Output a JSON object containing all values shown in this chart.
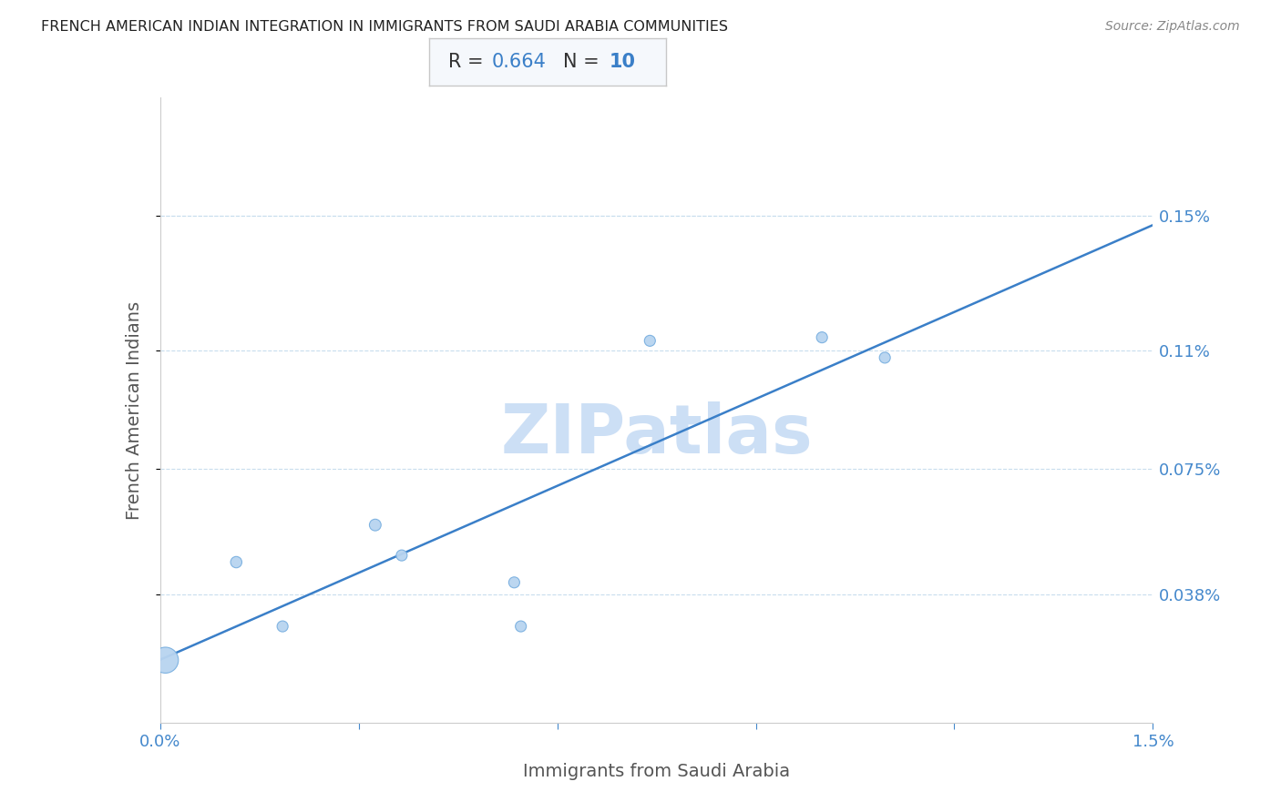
{
  "title": "FRENCH AMERICAN INDIAN INTEGRATION IN IMMIGRANTS FROM SAUDI ARABIA COMMUNITIES",
  "source": "Source: ZipAtlas.com",
  "xlabel": "Immigrants from Saudi Arabia",
  "ylabel": "French American Indians",
  "R": "0.664",
  "N": "10",
  "watermark": "ZIPatlas",
  "xlim": [
    0.0,
    0.015
  ],
  "ylim": [
    0.0,
    0.00185
  ],
  "ytick_labels": [
    "0.038%",
    "0.075%",
    "0.11%",
    "0.15%"
  ],
  "ytick_values": [
    0.00038,
    0.00075,
    0.0011,
    0.0015
  ],
  "xtick_positions": [
    0.0,
    0.003,
    0.006,
    0.009,
    0.012,
    0.015
  ],
  "scatter_x": [
    8e-05,
    0.00115,
    0.00185,
    0.00325,
    0.00365,
    0.00535,
    0.00545,
    0.0074,
    0.01,
    0.01095
  ],
  "scatter_y": [
    0.000185,
    0.000475,
    0.000285,
    0.000585,
    0.000495,
    0.000415,
    0.000285,
    0.00113,
    0.00114,
    0.00108
  ],
  "scatter_sizes": [
    420,
    80,
    75,
    85,
    75,
    75,
    75,
    75,
    75,
    75
  ],
  "dot_color": "#b8d4f0",
  "dot_edge_color": "#7ab0e0",
  "line_color": "#3a7fc8",
  "line_width": 1.8,
  "grid_color": "#c8dded",
  "title_color": "#222222",
  "axis_label_color": "#555555",
  "ytick_color": "#4488cc",
  "xtick_color": "#4488cc",
  "background_color": "#ffffff",
  "annotation_box_facecolor": "#f5f8fc",
  "annotation_border_color": "#c8c8c8",
  "R_label_color": "#333333",
  "N_label_color": "#3a7fc8",
  "source_color": "#888888",
  "watermark_color": "#ccdff5"
}
